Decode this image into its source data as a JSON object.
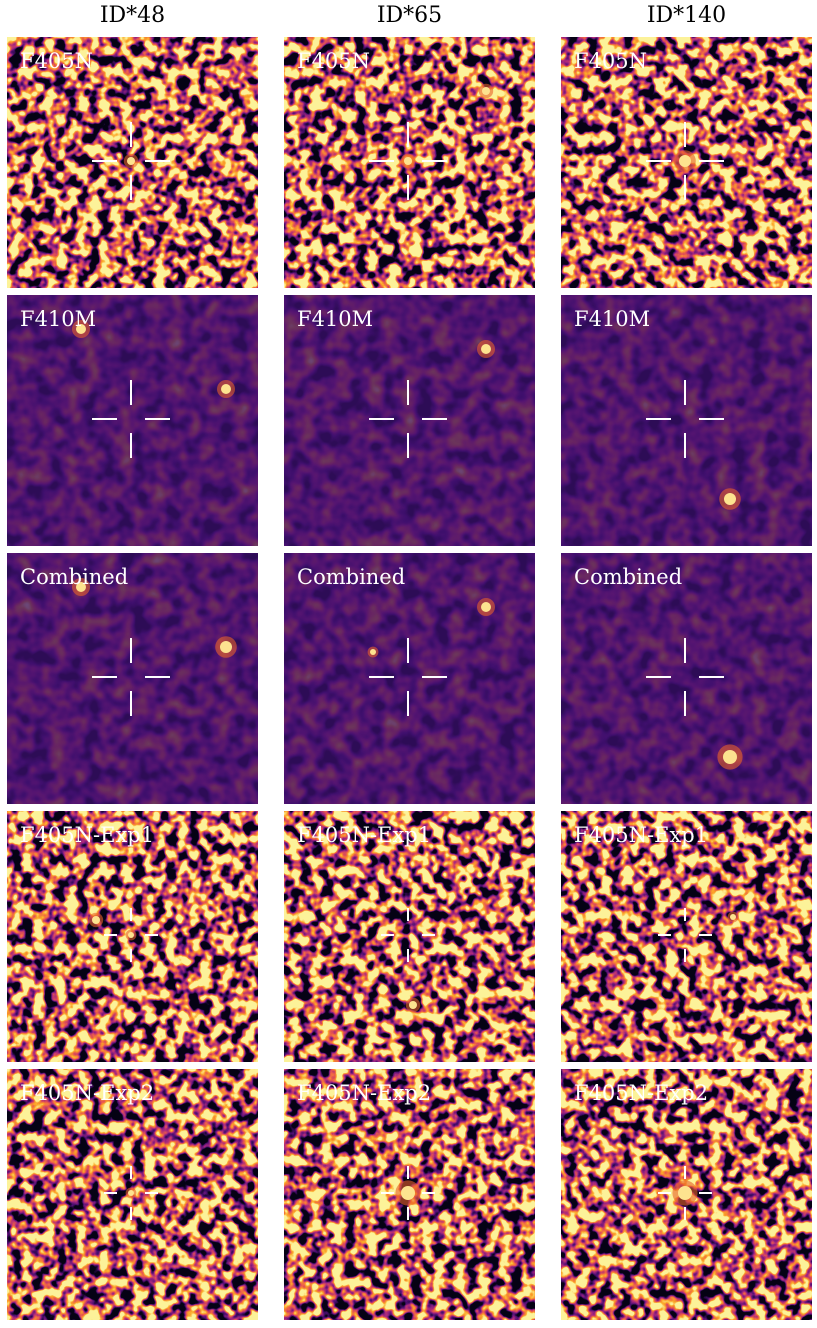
{
  "columns": [
    "ID*48",
    "ID*65",
    "ID*140"
  ],
  "rows": [
    "F405N",
    "F410M",
    "Combined",
    "F405N-Exp1",
    "F405N-Exp2"
  ]
}
